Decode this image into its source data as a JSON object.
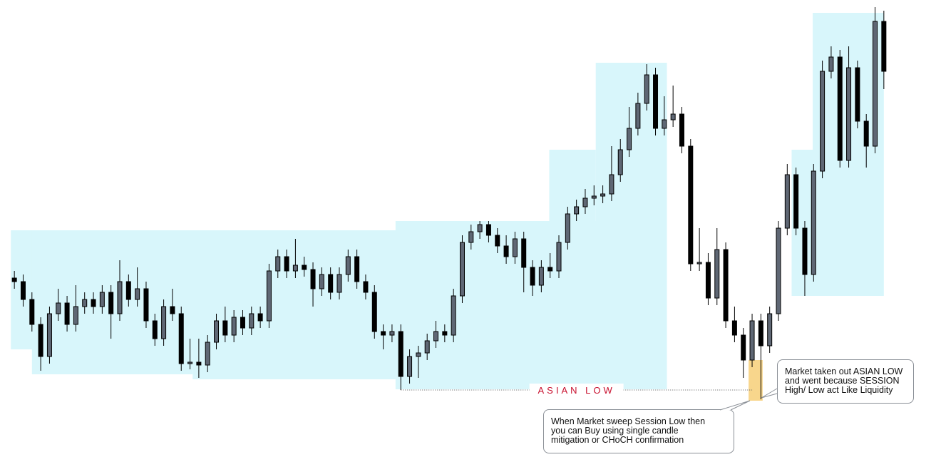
{
  "chart_data": {
    "type": "candlestick",
    "up_color": "#5f6774",
    "down_color": "#000000",
    "zone_color": "#d8f6fb",
    "xlim": [
      -0.5,
      99.5
    ],
    "ylim": [
      0,
      655
    ],
    "open": [
      265,
      260,
      235,
      200,
      155,
      215,
      230,
      200,
      225,
      235,
      225,
      245,
      215,
      260,
      235,
      250,
      205,
      180,
      225,
      215,
      145,
      147,
      143,
      175,
      205,
      185,
      210,
      195,
      215,
      205,
      275,
      295,
      275,
      283,
      277,
      250,
      270,
      245,
      270,
      295,
      260,
      245,
      190,
      185,
      190,
      127,
      155,
      160,
      177,
      190,
      185,
      240,
      315,
      330,
      340,
      325,
      310,
      295,
      320,
      280,
      255,
      280,
      275,
      315,
      355,
      365,
      377,
      380,
      383,
      410,
      445,
      475,
      510,
      550,
      475,
      487,
      495,
      450,
      285,
      287,
      237,
      305,
      205,
      185,
      150,
      205,
      170,
      215,
      335,
      410,
      335,
      270,
      415,
      555,
      575,
      430,
      560,
      485,
      450,
      625
    ],
    "high": [
      275,
      270,
      245,
      210,
      225,
      250,
      240,
      255,
      245,
      245,
      255,
      255,
      290,
      270,
      280,
      260,
      215,
      235,
      250,
      225,
      180,
      180,
      185,
      215,
      225,
      220,
      220,
      225,
      225,
      285,
      305,
      305,
      320,
      295,
      287,
      280,
      280,
      280,
      305,
      305,
      270,
      255,
      200,
      200,
      200,
      165,
      170,
      187,
      205,
      200,
      250,
      325,
      340,
      345,
      345,
      335,
      325,
      330,
      330,
      290,
      290,
      300,
      325,
      365,
      375,
      390,
      395,
      395,
      450,
      460,
      505,
      525,
      565,
      560,
      520,
      535,
      505,
      460,
      335,
      300,
      335,
      315,
      225,
      195,
      215,
      215,
      225,
      345,
      425,
      420,
      345,
      425,
      570,
      590,
      585,
      590,
      570,
      495,
      645,
      640
    ],
    "low": [
      250,
      225,
      190,
      135,
      145,
      205,
      190,
      190,
      215,
      215,
      215,
      180,
      205,
      225,
      225,
      195,
      170,
      170,
      205,
      135,
      137,
      125,
      133,
      165,
      175,
      175,
      185,
      185,
      195,
      195,
      265,
      265,
      265,
      267,
      225,
      240,
      235,
      235,
      260,
      250,
      235,
      180,
      165,
      175,
      108,
      117,
      125,
      150,
      167,
      175,
      175,
      230,
      305,
      320,
      315,
      300,
      285,
      285,
      245,
      240,
      245,
      265,
      265,
      305,
      345,
      355,
      367,
      370,
      373,
      400,
      435,
      465,
      500,
      465,
      465,
      477,
      440,
      275,
      275,
      227,
      227,
      195,
      175,
      125,
      140,
      95,
      160,
      205,
      325,
      325,
      240,
      260,
      405,
      545,
      420,
      420,
      475,
      420,
      440,
      530
    ],
    "close": [
      260,
      235,
      200,
      155,
      215,
      230,
      200,
      225,
      235,
      225,
      245,
      215,
      260,
      235,
      250,
      205,
      180,
      225,
      215,
      145,
      147,
      143,
      175,
      205,
      185,
      210,
      195,
      215,
      205,
      275,
      295,
      275,
      283,
      277,
      250,
      270,
      245,
      270,
      295,
      260,
      245,
      190,
      185,
      190,
      127,
      155,
      160,
      177,
      190,
      185,
      240,
      315,
      330,
      340,
      325,
      310,
      295,
      320,
      280,
      255,
      280,
      275,
      315,
      355,
      365,
      377,
      380,
      383,
      410,
      445,
      475,
      510,
      550,
      475,
      487,
      495,
      450,
      285,
      287,
      237,
      305,
      205,
      185,
      150,
      205,
      170,
      215,
      335,
      410,
      335,
      270,
      415,
      555,
      575,
      430,
      560,
      485,
      450,
      625,
      555
    ],
    "zones": [
      {
        "x": [
          -0.4,
          50.3
        ],
        "y": [
          165,
          332
        ]
      },
      {
        "x": [
          2,
          20.3
        ],
        "y": [
          130,
          332
        ]
      },
      {
        "x": [
          20.3,
          50.3
        ],
        "y": [
          123,
          332
        ]
      },
      {
        "x": [
          43.4,
          74.3
        ],
        "y": [
          109,
          345
        ]
      },
      {
        "x": [
          66.2,
          74.3
        ],
        "y": [
          345,
          567
        ]
      },
      {
        "x": [
          60.9,
          66.2
        ],
        "y": [
          345,
          445
        ]
      },
      {
        "x": [
          90.9,
          99
        ],
        "y": [
          240,
          637
        ]
      },
      {
        "x": [
          88.5,
          90.9
        ],
        "y": [
          240,
          445
        ]
      }
    ],
    "sweep": {
      "x": [
        83.6,
        85.2
      ],
      "y": [
        93,
        150
      ],
      "color": "#f8d68c"
    },
    "level": {
      "label": "ASIAN LOW",
      "value": 108,
      "x": [
        44,
        84
      ],
      "color": "#c8102e"
    },
    "callouts": [
      {
        "lines": [
          "Market taken out ASIAN LOW",
          "and went because SESSION",
          "High/ Low act Like Liquidity"
        ]
      },
      {
        "lines": [
          "When Market sweep Session Low then",
          "you can Buy using single candle",
          "mitigation or CHoCH confirmation"
        ]
      }
    ]
  }
}
